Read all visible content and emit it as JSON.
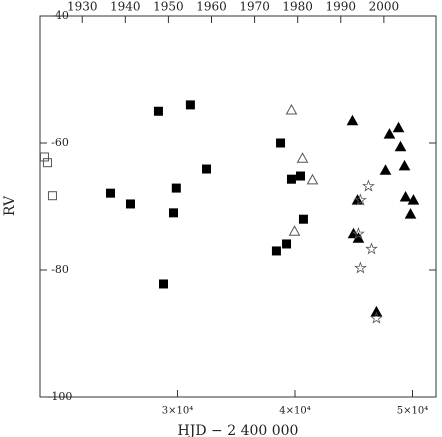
{
  "chart_data": {
    "type": "scatter",
    "x_label": "HJD − 2 400 000",
    "y_label": "RV",
    "xlim": [
      18300,
      52000
    ],
    "ylim": [
      -100,
      -40
    ],
    "xticks": [
      {
        "value": 30000,
        "label": "3×10⁴"
      },
      {
        "value": 40000,
        "label": "4×10⁴"
      },
      {
        "value": 50000,
        "label": "5×10⁴"
      }
    ],
    "yticks": [
      -40,
      -60,
      -80,
      -100
    ],
    "x2lim": [
      1920.2,
      2012.1
    ],
    "x2ticks": [
      1930,
      1940,
      1950,
      1960,
      1970,
      1980,
      1990,
      2000
    ],
    "series": [
      {
        "marker": "square",
        "filled": false,
        "color": "#555555",
        "x": [
          18680,
          18935,
          19360
        ],
        "values": [
          -62.2,
          -63.1,
          -68.3
        ]
      },
      {
        "marker": "square",
        "filled": true,
        "color": "#000000",
        "x": [
          24300,
          26000,
          28380,
          31100,
          29900,
          29660,
          32470,
          28810,
          38770,
          39700,
          40470,
          40720,
          39280,
          38420
        ],
        "values": [
          -67.9,
          -69.6,
          -55.0,
          -54.0,
          -67.1,
          -71.0,
          -64.1,
          -82.2,
          -60.0,
          -65.7,
          -65.2,
          -72.0,
          -75.9,
          -77.0
        ]
      },
      {
        "marker": "triangle",
        "filled": false,
        "color": "#555555",
        "x": [
          39700,
          40640,
          41490,
          39960
        ],
        "values": [
          -54.8,
          -62.4,
          -65.8,
          -73.9
        ]
      },
      {
        "marker": "triangle",
        "filled": true,
        "color": "#000000",
        "x": [
          44890,
          48040,
          48810,
          48980,
          47700,
          49320,
          45320,
          49410,
          50080,
          49830,
          45400,
          44980,
          46930
        ],
        "values": [
          -56.5,
          -58.6,
          -57.6,
          -60.6,
          -64.3,
          -63.6,
          -69.0,
          -68.5,
          -69.0,
          -71.2,
          -75.0,
          -74.3,
          -86.6
        ]
      },
      {
        "marker": "star",
        "filled": false,
        "color": "#555555",
        "x": [
          46250,
          45570,
          45400,
          46510,
          45570,
          46930
        ],
        "values": [
          -66.8,
          -69.0,
          -74.3,
          -76.7,
          -79.7,
          -87.6
        ]
      }
    ]
  }
}
